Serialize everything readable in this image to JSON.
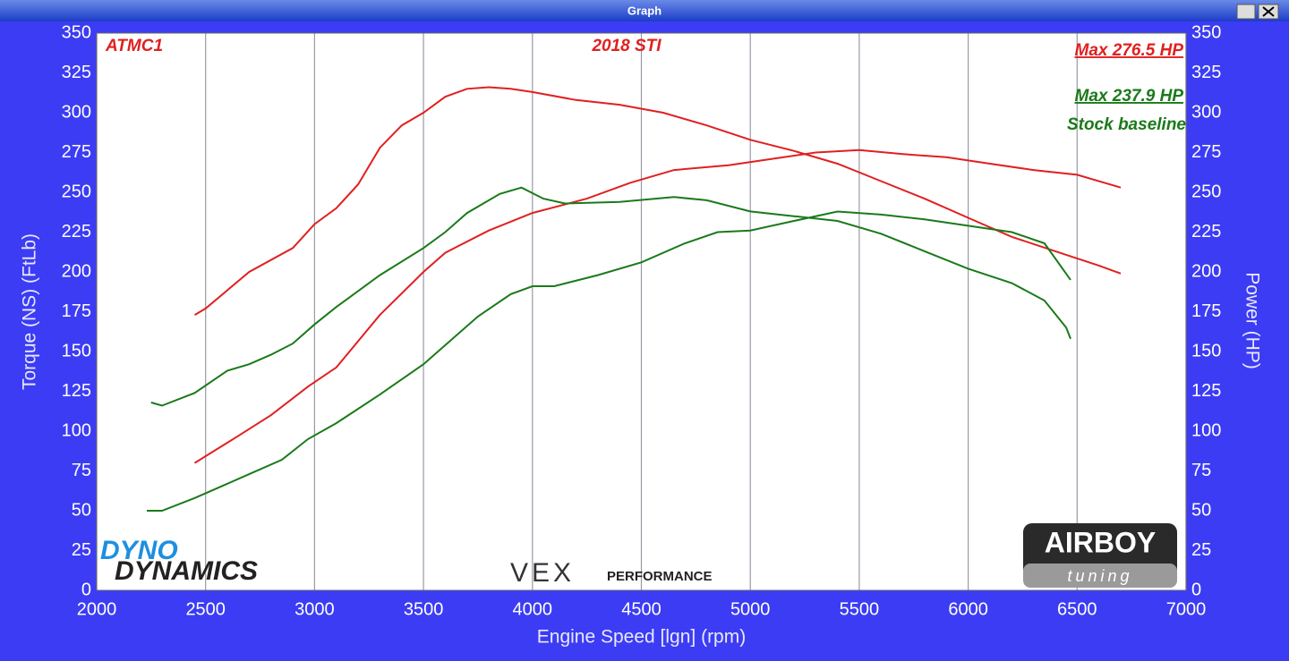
{
  "window": {
    "title": "Graph"
  },
  "logos": [
    "DYNO",
    "DYNAMICS",
    "VEX",
    "PERFORMANCE",
    "AIRBOY",
    "tuning"
  ],
  "chart_data": {
    "type": "line",
    "xlabel": "Engine Speed [lgn] (rpm)",
    "ylabel": "Torque (NS) (FtLb)",
    "y2label": "Power (HP)",
    "xlim": [
      2000,
      7000
    ],
    "xticks": [
      2000,
      2500,
      3000,
      3500,
      4000,
      4500,
      5000,
      5500,
      6000,
      6500,
      7000
    ],
    "ylim": [
      0,
      350
    ],
    "yticks": [
      0,
      25,
      50,
      75,
      100,
      125,
      150,
      175,
      200,
      225,
      250,
      275,
      300,
      325,
      350
    ],
    "y2lim": [
      0,
      350
    ],
    "y2ticks": [
      0,
      25,
      50,
      75,
      100,
      125,
      150,
      175,
      200,
      225,
      250,
      275,
      300,
      325,
      350
    ],
    "grid": "x",
    "annotations": [
      {
        "text": "ATMC1",
        "color": "#e02020"
      },
      {
        "text": "2018 STI",
        "color": "#e02020"
      },
      {
        "text": "Max 276.5 HP",
        "color": "#e02020"
      },
      {
        "text": "Max 237.9 HP",
        "color": "#1a7a1a"
      },
      {
        "text": "Stock baseline",
        "color": "#1a7a1a"
      }
    ],
    "series": [
      {
        "color": "#e02020",
        "axis": "y",
        "x": [
          2450,
          2500,
          2700,
          2900,
          3000,
          3100,
          3200,
          3300,
          3400,
          3500,
          3600,
          3700,
          3800,
          3900,
          4000,
          4200,
          4400,
          4600,
          4800,
          5000,
          5200,
          5400,
          5600,
          5800,
          6000,
          6200,
          6400,
          6600,
          6700
        ],
        "values": [
          173,
          177,
          200,
          215,
          230,
          240,
          255,
          278,
          292,
          300,
          310,
          315,
          316,
          315,
          313,
          308,
          305,
          300,
          292,
          283,
          276,
          268,
          257,
          246,
          234,
          222,
          213,
          204,
          199
        ]
      },
      {
        "color": "#e02020",
        "axis": "y2",
        "x": [
          2450,
          2650,
          2800,
          2970,
          3100,
          3300,
          3500,
          3600,
          3800,
          4000,
          4250,
          4450,
          4650,
          4900,
          5100,
          5300,
          5500,
          5700,
          5900,
          6100,
          6300,
          6500,
          6700
        ],
        "values": [
          80,
          97,
          110,
          128,
          140,
          173,
          200,
          212,
          226,
          237,
          246,
          256,
          264,
          267,
          271,
          275,
          276.5,
          274,
          272,
          268,
          264,
          261,
          253
        ]
      },
      {
        "color": "#1a7a1a",
        "axis": "y",
        "x": [
          2250,
          2300,
          2450,
          2600,
          2700,
          2800,
          2900,
          3000,
          3100,
          3300,
          3500,
          3600,
          3700,
          3850,
          3950,
          4050,
          4150,
          4400,
          4650,
          4800,
          5000,
          5200,
          5400,
          5600,
          5800,
          6000,
          6200,
          6350,
          6450,
          6470
        ],
        "values": [
          118,
          116,
          124,
          138,
          142,
          148,
          155,
          167,
          178,
          198,
          215,
          225,
          237,
          249,
          253,
          246,
          243,
          244,
          247,
          245,
          238,
          235,
          232,
          224,
          213,
          202,
          193,
          182,
          165,
          158
        ]
      },
      {
        "color": "#1a7a1a",
        "axis": "y2",
        "x": [
          2230,
          2300,
          2450,
          2700,
          2850,
          2970,
          3100,
          3300,
          3500,
          3600,
          3750,
          3900,
          4000,
          4100,
          4300,
          4500,
          4700,
          4850,
          5000,
          5200,
          5400,
          5600,
          5800,
          6000,
          6200,
          6350,
          6470
        ],
        "values": [
          50,
          50,
          58,
          73,
          82,
          95,
          105,
          123,
          142,
          154,
          172,
          186,
          191,
          191,
          198,
          206,
          218,
          225,
          226,
          232,
          237.9,
          236,
          233,
          229,
          225,
          218,
          195
        ]
      }
    ]
  }
}
